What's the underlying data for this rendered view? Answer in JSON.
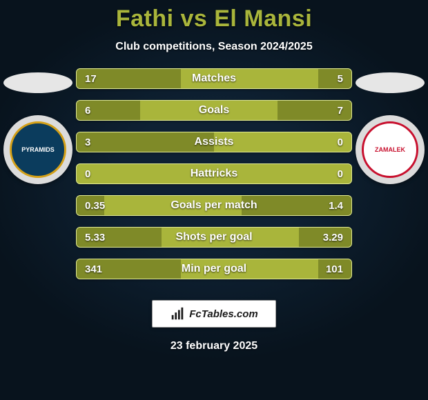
{
  "header": {
    "title": "Fathi vs El Mansi",
    "subtitle": "Club competitions, Season 2024/2025"
  },
  "players": {
    "left": {
      "club_placeholder": "PYRAMIDS",
      "badge_bg": "#0b3c5d",
      "badge_accent": "#d4a017"
    },
    "right": {
      "club_placeholder": "ZAMALEK",
      "badge_bg": "#ffffff",
      "badge_accent": "#c8102e"
    }
  },
  "colors": {
    "title": "#a9b53b",
    "bar_bg": "#a9b53b",
    "bar_border": "#e3ec94",
    "bar_fill": "#7f8a28",
    "page_bg_inner": "#0e2133",
    "page_bg_outer": "#08131d",
    "text_white": "#ffffff"
  },
  "stats": [
    {
      "label": "Matches",
      "left_val": "17",
      "right_val": "5",
      "left_pct": 38,
      "right_pct": 12
    },
    {
      "label": "Goals",
      "left_val": "6",
      "right_val": "7",
      "left_pct": 23,
      "right_pct": 27
    },
    {
      "label": "Assists",
      "left_val": "3",
      "right_val": "0",
      "left_pct": 50,
      "right_pct": 0
    },
    {
      "label": "Hattricks",
      "left_val": "0",
      "right_val": "0",
      "left_pct": 0,
      "right_pct": 0
    },
    {
      "label": "Goals per match",
      "left_val": "0.35",
      "right_val": "1.4",
      "left_pct": 10,
      "right_pct": 40
    },
    {
      "label": "Shots per goal",
      "left_val": "5.33",
      "right_val": "3.29",
      "left_pct": 31,
      "right_pct": 19
    },
    {
      "label": "Min per goal",
      "left_val": "341",
      "right_val": "101",
      "left_pct": 38,
      "right_pct": 12
    }
  ],
  "footer": {
    "brand": "FcTables.com",
    "date": "23 february 2025"
  }
}
